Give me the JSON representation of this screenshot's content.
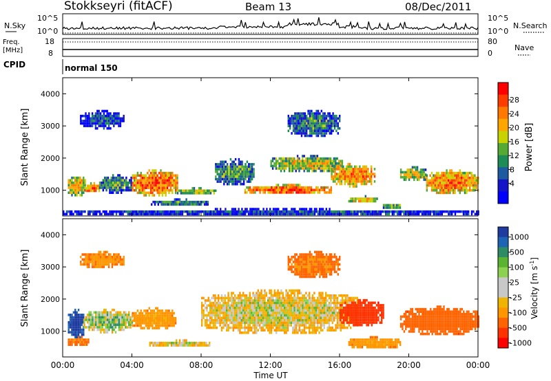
{
  "header": {
    "station": "Stokkseyri (fitACF)",
    "beam": "Beam 13",
    "date": "08/Dec/2011"
  },
  "top_panels": {
    "nsky_label": "N.Sky",
    "nsky_ticks": [
      "10^5",
      "10^0"
    ],
    "nsearch_label": "N.Search",
    "nsearch_ticks": [
      "10^5",
      "10^0"
    ],
    "freq_label": "Freq.",
    "freq_unit": "[MHz]",
    "freq_ticks": [
      "18",
      "8"
    ],
    "nave_label": "Nave",
    "nave_ticks": [
      "80",
      "0"
    ],
    "cpid_label": "CPID",
    "cpid_value": "normal 150"
  },
  "power_panel": {
    "ylabel": "Slant Range [km]",
    "yticks": [
      "4000",
      "3000",
      "2000",
      "1000"
    ],
    "colorbar_label": "Power [dB]",
    "colorbar_ticks": [
      "28",
      "24",
      "20",
      "16",
      "12",
      "8",
      "4"
    ],
    "colorbar_colors": [
      "#ff0000",
      "#ff3c00",
      "#ff7800",
      "#ffa500",
      "#c8d200",
      "#55aa33",
      "#1e8c55",
      "#1e5aa0",
      "#1414c8",
      "#0000ff"
    ]
  },
  "velocity_panel": {
    "ylabel": "Slant Range [km]",
    "yticks": [
      "4000",
      "3000",
      "2000",
      "1000"
    ],
    "colorbar_label": "Velocity [m s",
    "colorbar_sup": "-1",
    "colorbar_ticks": [
      "1000",
      "500",
      "100",
      "25",
      "-25",
      "-100",
      "-500",
      "-1000"
    ],
    "colorbar_colors": [
      "#1e3ca0",
      "#1e64b4",
      "#2d8c64",
      "#5ab432",
      "#8cd250",
      "#c8c8c8",
      "#c8c8c8",
      "#f0b400",
      "#ff9600",
      "#ff6400",
      "#ff3200",
      "#ff0000"
    ]
  },
  "xaxis": {
    "label": "Time UT",
    "ticks": [
      "00:00",
      "04:00",
      "08:00",
      "12:00",
      "16:00",
      "20:00",
      "00:00"
    ]
  },
  "chart_data": [
    {
      "type": "heatmap",
      "name": "power",
      "x_range_hours": [
        0,
        24
      ],
      "y_range_km": [
        200,
        4500
      ],
      "value_unit": "dB",
      "blobs": [
        {
          "t0": 0.3,
          "t1": 1.3,
          "r0": 850,
          "r1": 1500,
          "v": 22
        },
        {
          "t0": 1.3,
          "t1": 2.1,
          "r0": 950,
          "r1": 1250,
          "v": 28
        },
        {
          "t0": 2.1,
          "t1": 4.0,
          "r0": 950,
          "r1": 1500,
          "v": 14
        },
        {
          "t0": 4.0,
          "t1": 6.6,
          "r0": 850,
          "r1": 1650,
          "v": 28
        },
        {
          "t0": 6.6,
          "t1": 8.8,
          "r0": 900,
          "r1": 1100,
          "v": 20
        },
        {
          "t0": 8.8,
          "t1": 11.0,
          "r0": 1200,
          "r1": 2000,
          "v": 14
        },
        {
          "t0": 10.5,
          "t1": 15.5,
          "r0": 900,
          "r1": 1200,
          "v": 28
        },
        {
          "t0": 12.0,
          "t1": 16.2,
          "r0": 1600,
          "r1": 2100,
          "v": 20
        },
        {
          "t0": 15.5,
          "t1": 18.0,
          "r0": 1150,
          "r1": 1850,
          "v": 26
        },
        {
          "t0": 16.5,
          "t1": 18.2,
          "r0": 650,
          "r1": 850,
          "v": 22
        },
        {
          "t0": 18.5,
          "t1": 19.5,
          "r0": 450,
          "r1": 650,
          "v": 16
        },
        {
          "t0": 19.5,
          "t1": 21.0,
          "r0": 1300,
          "r1": 1750,
          "v": 20
        },
        {
          "t0": 21.0,
          "t1": 24.0,
          "r0": 900,
          "r1": 1650,
          "v": 26
        },
        {
          "t0": 1.0,
          "t1": 3.5,
          "r0": 2950,
          "r1": 3500,
          "v": 8
        },
        {
          "t0": 13.0,
          "t1": 16.0,
          "r0": 2700,
          "r1": 3500,
          "v": 12
        },
        {
          "t0": 5.0,
          "t1": 8.5,
          "r0": 550,
          "r1": 750,
          "v": 12
        },
        {
          "t0": 0.0,
          "t1": 24.0,
          "r0": 250,
          "r1": 450,
          "v": 8
        }
      ]
    },
    {
      "type": "heatmap",
      "name": "velocity",
      "x_range_hours": [
        0,
        24
      ],
      "y_range_km": [
        200,
        4500
      ],
      "value_unit": "m s^-1",
      "blobs": [
        {
          "t0": 0.3,
          "t1": 1.2,
          "r0": 800,
          "r1": 1700,
          "v": 800
        },
        {
          "t0": 1.2,
          "t1": 4.0,
          "r0": 1000,
          "r1": 1700,
          "v": 60
        },
        {
          "t0": 4.0,
          "t1": 6.5,
          "r0": 1100,
          "r1": 1750,
          "v": -150
        },
        {
          "t0": 0.3,
          "t1": 1.5,
          "r0": 550,
          "r1": 850,
          "v": -300
        },
        {
          "t0": 5.0,
          "t1": 8.5,
          "r0": 550,
          "r1": 750,
          "v": 0
        },
        {
          "t0": 8.0,
          "t1": 17.0,
          "r0": 950,
          "r1": 2300,
          "v": 0
        },
        {
          "t0": 16.0,
          "t1": 18.5,
          "r0": 1200,
          "r1": 2000,
          "v": -700
        },
        {
          "t0": 16.5,
          "t1": 19.5,
          "r0": 500,
          "r1": 850,
          "v": -150
        },
        {
          "t0": 19.5,
          "t1": 24.0,
          "r0": 900,
          "r1": 1800,
          "v": -400
        },
        {
          "t0": 1.0,
          "t1": 3.5,
          "r0": 3000,
          "r1": 3500,
          "v": -200
        },
        {
          "t0": 13.0,
          "t1": 16.0,
          "r0": 2700,
          "r1": 3500,
          "v": -300
        }
      ]
    }
  ]
}
